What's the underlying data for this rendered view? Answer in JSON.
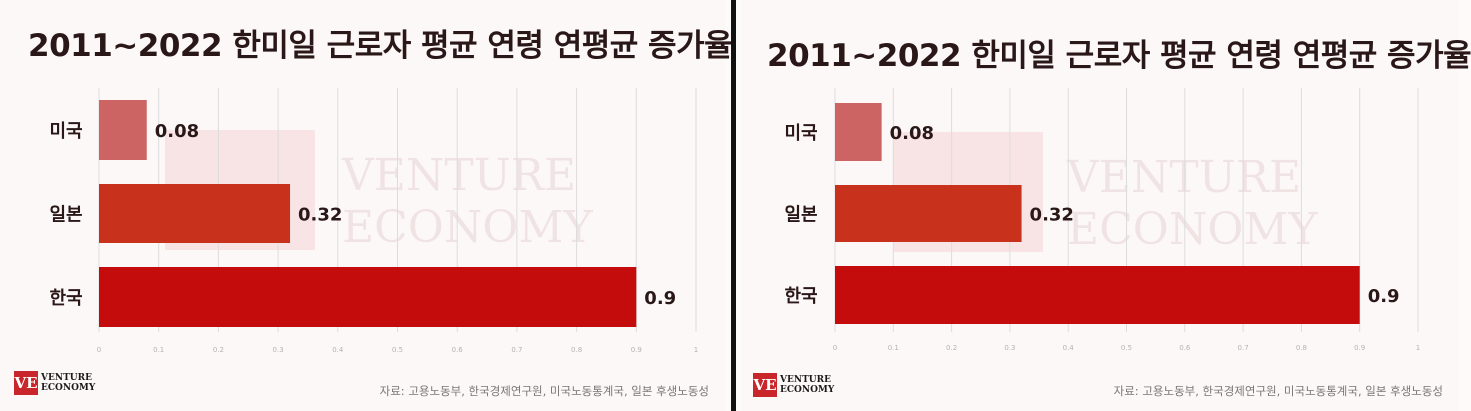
{
  "panels": [
    {
      "title": "2011~2022 한미일 근로자 평균 연령 연평균 증가율",
      "source": "자료: 고용노동부, 한국경제연구원, 미국노동통계국, 일본 후생노동성",
      "logo": {
        "mark": "VE",
        "line1": "VENTURE",
        "line2": "ECONOMY"
      },
      "watermark": [
        "VENTURE",
        "ECONOMY"
      ]
    },
    {
      "title": "2011~2022 한미일 근로자 평균 연령 연평균 증가율",
      "source": "자료: 고용노동부, 한국경제연구원, 미국노동통계국, 일본 후생노동성",
      "logo": {
        "mark": "VE",
        "line1": "VENTURE",
        "line2": "ECONOMY"
      },
      "watermark": [
        "VENTURE",
        "ECONOMY"
      ]
    }
  ],
  "colors": {
    "미국": "#cc6464",
    "일본": "#c8311b",
    "한국": "#c40c0c",
    "grid": "#dcdcdc",
    "text": "#2a1818"
  },
  "chart_data": [
    {
      "type": "bar",
      "orientation": "horizontal",
      "title": "2011~2022 한미일 근로자 평균 연령 연평균 증가율",
      "categories": [
        "미국",
        "일본",
        "한국"
      ],
      "values": [
        0.08,
        0.32,
        0.9
      ],
      "value_labels": [
        "0.08",
        "0.32",
        "0.9"
      ],
      "xlim": [
        0,
        1
      ],
      "xticks": [
        "0",
        "0.1",
        "0.2",
        "0.3",
        "0.4",
        "0.5",
        "0.6",
        "0.7",
        "0.8",
        "0.9",
        "1"
      ],
      "grid": true,
      "legend": "none"
    },
    {
      "type": "bar",
      "orientation": "horizontal",
      "title": "2011~2022 한미일 근로자 평균 연령 연평균 증가율",
      "categories": [
        "미국",
        "일본",
        "한국"
      ],
      "values": [
        0.08,
        0.32,
        0.9
      ],
      "value_labels": [
        "0.08",
        "0.32",
        "0.9"
      ],
      "xlim": [
        0,
        1
      ],
      "xticks": [
        "0",
        "0.1",
        "0.2",
        "0.3",
        "0.4",
        "0.5",
        "0.6",
        "0.7",
        "0.8",
        "0.9",
        "1"
      ],
      "grid": true,
      "legend": "none"
    }
  ]
}
